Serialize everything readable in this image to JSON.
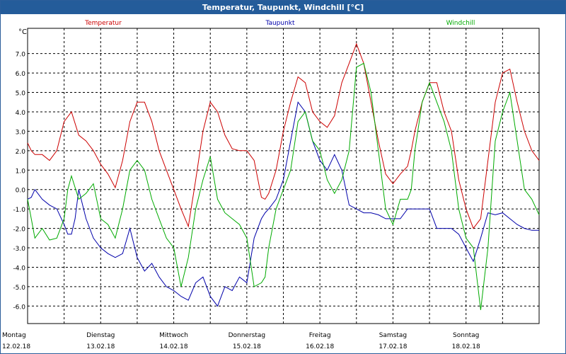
{
  "window": {
    "title": "Temperatur, Taupunkt, Windchill [°C]"
  },
  "chart_data": {
    "type": "line",
    "title": "Temperatur, Taupunkt, Windchill [°C]",
    "ylabel": "°C",
    "ylim": [
      -6.9,
      8.3
    ],
    "yticks": [
      "-6.0",
      "-5.0",
      "-4.0",
      "-3.0",
      "-2.0",
      "-1.0",
      "0.0",
      "1.0",
      "2.0",
      "3.0",
      "4.0",
      "5.0",
      "6.0",
      "7.0"
    ],
    "ytick_values": [
      -6,
      -5,
      -4,
      -3,
      -2,
      -1,
      0,
      1,
      2,
      3,
      4,
      5,
      6,
      7
    ],
    "xlim": [
      0,
      7.0
    ],
    "x_days": [
      {
        "day": "Montag",
        "date": "12.02.18"
      },
      {
        "day": "Dienstag",
        "date": "13.02.18"
      },
      {
        "day": "Mittwoch",
        "date": "14.02.18"
      },
      {
        "day": "Donnerstag",
        "date": "15.02.18"
      },
      {
        "day": "Freitag",
        "date": "16.02.18"
      },
      {
        "day": "Samstag",
        "date": "17.02.18"
      },
      {
        "day": "Sonntag",
        "date": "18.02.18"
      }
    ],
    "grid": true,
    "legend_position": "top",
    "series": [
      {
        "name": "Temperatur",
        "color": "#cc0000",
        "x": [
          0.0,
          0.05,
          0.1,
          0.2,
          0.3,
          0.4,
          0.5,
          0.6,
          0.7,
          0.8,
          0.9,
          1.0,
          1.1,
          1.2,
          1.3,
          1.4,
          1.5,
          1.6,
          1.7,
          1.8,
          1.9,
          2.0,
          2.1,
          2.2,
          2.3,
          2.4,
          2.5,
          2.6,
          2.7,
          2.8,
          2.9,
          3.0,
          3.1,
          3.2,
          3.25,
          3.3,
          3.4,
          3.5,
          3.6,
          3.7,
          3.8,
          3.9,
          4.0,
          4.1,
          4.2,
          4.3,
          4.4,
          4.5,
          4.6,
          4.7,
          4.8,
          4.9,
          5.0,
          5.1,
          5.2,
          5.25,
          5.3,
          5.4,
          5.5,
          5.6,
          5.7,
          5.8,
          5.9,
          6.0,
          6.1,
          6.2,
          6.3,
          6.4,
          6.5,
          6.6,
          6.7,
          6.8,
          6.9,
          7.0
        ],
        "y": [
          2.4,
          2.0,
          1.8,
          1.8,
          1.5,
          2.0,
          3.5,
          4.0,
          2.8,
          2.5,
          2.0,
          1.3,
          0.8,
          0.1,
          1.5,
          3.5,
          4.5,
          4.5,
          3.5,
          2.0,
          1.0,
          0.0,
          -1.0,
          -1.9,
          0.5,
          3.0,
          4.5,
          4.0,
          2.8,
          2.1,
          2.0,
          2.0,
          1.5,
          -0.4,
          -0.5,
          -0.2,
          1.0,
          3.0,
          4.5,
          5.8,
          5.5,
          4.0,
          3.5,
          3.2,
          3.8,
          5.5,
          6.5,
          7.5,
          6.5,
          4.5,
          2.5,
          0.8,
          0.3,
          0.8,
          1.2,
          2.0,
          3.0,
          4.5,
          5.5,
          5.5,
          4.0,
          3.0,
          0.5,
          -1.0,
          -2.0,
          -1.5,
          1.5,
          4.5,
          6.0,
          6.2,
          4.5,
          3.0,
          2.0,
          1.5
        ]
      },
      {
        "name": "Taupunkt",
        "color": "#0000aa",
        "x": [
          0.0,
          0.05,
          0.1,
          0.2,
          0.3,
          0.4,
          0.5,
          0.55,
          0.6,
          0.65,
          0.7,
          0.8,
          0.9,
          1.0,
          1.1,
          1.2,
          1.3,
          1.4,
          1.5,
          1.6,
          1.7,
          1.8,
          1.9,
          2.0,
          2.1,
          2.2,
          2.3,
          2.4,
          2.5,
          2.6,
          2.7,
          2.8,
          2.9,
          3.0,
          3.1,
          3.2,
          3.25,
          3.3,
          3.4,
          3.5,
          3.6,
          3.7,
          3.8,
          3.9,
          4.0,
          4.1,
          4.2,
          4.3,
          4.4,
          4.5,
          4.6,
          4.7,
          4.8,
          4.9,
          5.0,
          5.1,
          5.2,
          5.3,
          5.4,
          5.5,
          5.6,
          5.7,
          5.8,
          5.9,
          6.0,
          6.1,
          6.2,
          6.3,
          6.4,
          6.5,
          6.6,
          6.7,
          6.8,
          6.9,
          7.0
        ],
        "y": [
          -0.5,
          -0.4,
          0.0,
          -0.5,
          -0.8,
          -1.0,
          -1.8,
          -2.3,
          -2.3,
          -1.5,
          0.0,
          -1.5,
          -2.5,
          -3.0,
          -3.3,
          -3.5,
          -3.3,
          -2.0,
          -3.5,
          -4.2,
          -3.8,
          -4.5,
          -5.0,
          -5.2,
          -5.5,
          -5.7,
          -4.8,
          -4.5,
          -5.5,
          -6.0,
          -5.0,
          -5.2,
          -4.5,
          -4.8,
          -2.5,
          -1.5,
          -1.2,
          -1.0,
          -0.5,
          0.5,
          2.5,
          4.5,
          4.0,
          2.5,
          1.5,
          1.0,
          1.8,
          1.0,
          -0.8,
          -1.0,
          -1.2,
          -1.2,
          -1.3,
          -1.5,
          -1.5,
          -1.5,
          -1.0,
          -1.0,
          -1.0,
          -1.0,
          -2.0,
          -2.0,
          -2.0,
          -2.3,
          -3.0,
          -3.7,
          -2.5,
          -1.2,
          -1.3,
          -1.2,
          -1.5,
          -1.8,
          -2.0,
          -2.1,
          -2.1
        ]
      },
      {
        "name": "Windchill",
        "color": "#00aa00",
        "x": [
          0.0,
          0.05,
          0.1,
          0.2,
          0.3,
          0.4,
          0.5,
          0.55,
          0.6,
          0.7,
          0.8,
          0.9,
          1.0,
          1.1,
          1.2,
          1.3,
          1.4,
          1.5,
          1.6,
          1.7,
          1.8,
          1.9,
          2.0,
          2.1,
          2.2,
          2.3,
          2.4,
          2.5,
          2.6,
          2.7,
          2.8,
          2.9,
          3.0,
          3.1,
          3.2,
          3.25,
          3.3,
          3.4,
          3.5,
          3.6,
          3.7,
          3.8,
          3.9,
          4.0,
          4.1,
          4.2,
          4.3,
          4.4,
          4.5,
          4.6,
          4.7,
          4.8,
          4.9,
          5.0,
          5.1,
          5.2,
          5.25,
          5.3,
          5.4,
          5.5,
          5.6,
          5.7,
          5.8,
          5.9,
          6.0,
          6.1,
          6.2,
          6.3,
          6.4,
          6.5,
          6.6,
          6.7,
          6.8,
          6.9,
          7.0
        ],
        "y": [
          -0.5,
          -1.5,
          -2.5,
          -2.0,
          -2.6,
          -2.5,
          -1.5,
          0.0,
          0.7,
          -0.5,
          -0.2,
          0.3,
          -1.5,
          -1.8,
          -2.5,
          -1.0,
          1.0,
          1.5,
          1.0,
          -0.5,
          -1.5,
          -2.5,
          -3.0,
          -5.0,
          -3.5,
          -1.0,
          0.5,
          1.7,
          -0.5,
          -1.2,
          -1.5,
          -1.8,
          -2.5,
          -5.0,
          -4.8,
          -4.5,
          -3.0,
          -1.0,
          0.0,
          1.0,
          3.5,
          4.0,
          2.5,
          2.0,
          0.5,
          -0.2,
          0.5,
          2.0,
          6.3,
          6.5,
          5.0,
          2.0,
          -1.0,
          -1.8,
          -0.5,
          -0.5,
          0.0,
          2.0,
          4.5,
          5.5,
          4.5,
          3.5,
          2.0,
          -1.0,
          -2.5,
          -3.0,
          -6.2,
          -3.0,
          2.5,
          4.0,
          5.0,
          2.5,
          0.0,
          -0.5,
          -1.3
        ]
      }
    ]
  }
}
